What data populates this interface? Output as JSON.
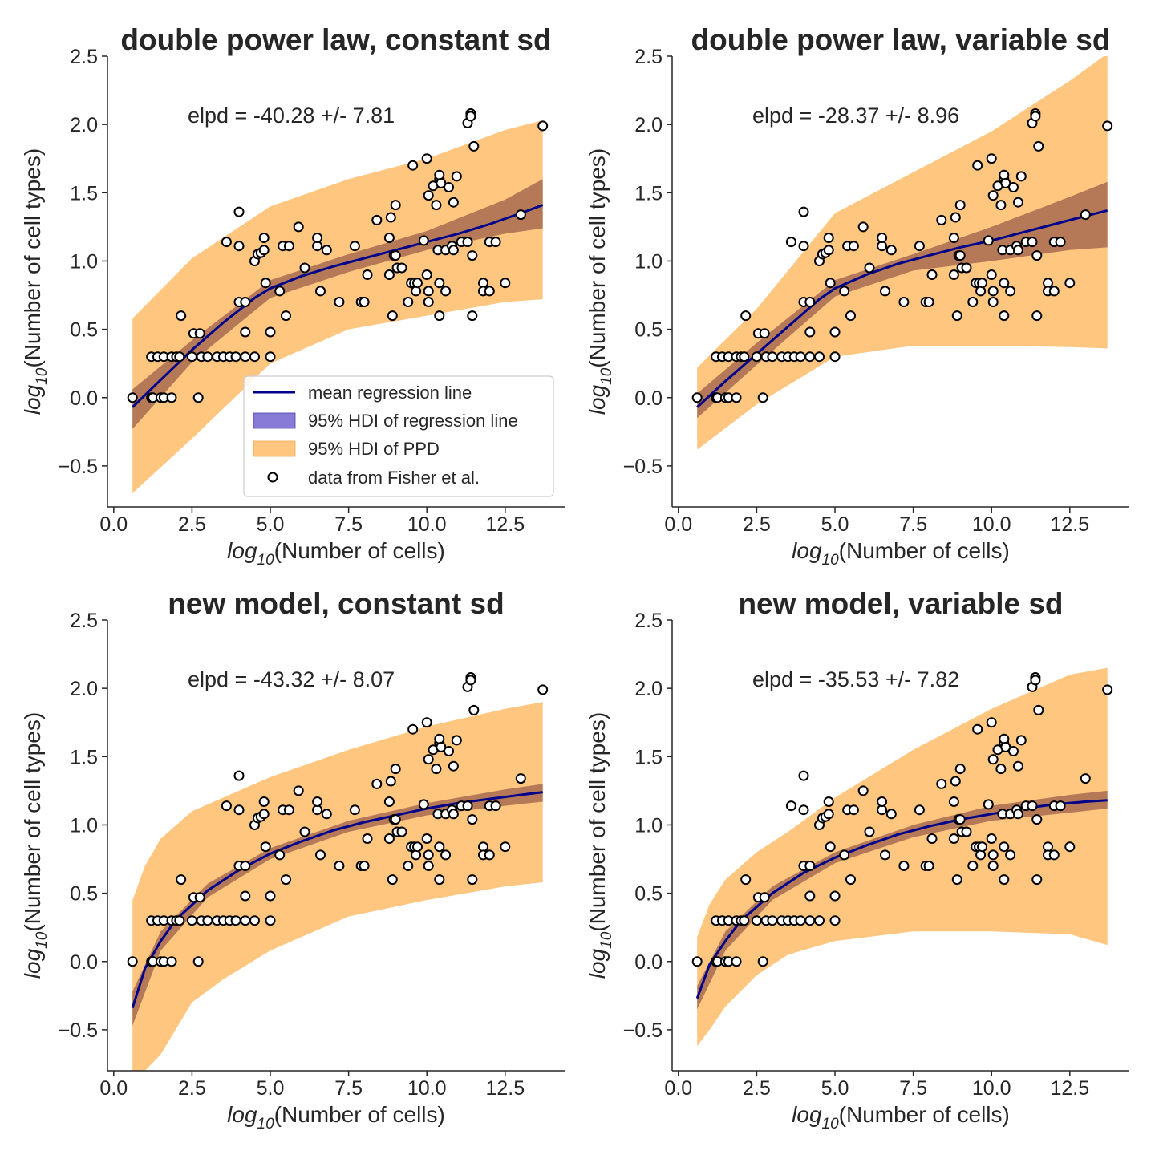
{
  "figure": {
    "x_label_base": "log",
    "x_label_sub": "10",
    "x_label_rest": "(Number of cells)",
    "y_label_base": "log",
    "y_label_sub": "10",
    "y_label_rest": "(Number of cell types)",
    "x_ticks": [
      "0.0",
      "2.5",
      "5.0",
      "7.5",
      "10.0",
      "12.5"
    ],
    "y_ticks": [
      "−0.5",
      "0.0",
      "0.5",
      "1.0",
      "1.5",
      "2.0",
      "2.5"
    ],
    "legend": {
      "mean_line": "mean regression line",
      "hdi_line": "95% HDI of regression line",
      "hdi_ppd": "95% HDI of PPD",
      "data": "data from Fisher et al."
    }
  },
  "colors": {
    "mean_line": "#00008b",
    "hdi_line_fill": "#6a5acd",
    "hdi_line_overlap": "#a86b50",
    "ppd_fill": "#ffc680",
    "points": "#ffffff",
    "point_edge": "#000000"
  },
  "chart_data": [
    {
      "type": "line",
      "title": "double power law, constant sd",
      "annotation": "elpd = -40.28 +/- 7.81",
      "xlim": [
        -0.2,
        14.4
      ],
      "ylim": [
        -0.8,
        2.5
      ],
      "has_legend": true,
      "legend_position": "lower-right",
      "grid": false,
      "mean_line": {
        "x": [
          0.6,
          1.5,
          2.5,
          3.5,
          4.5,
          5.0,
          6.0,
          7.0,
          8.0,
          9.0,
          10.0,
          11.0,
          12.0,
          13.0,
          13.7
        ],
        "y": [
          -0.07,
          0.13,
          0.35,
          0.55,
          0.73,
          0.8,
          0.89,
          0.96,
          1.02,
          1.08,
          1.14,
          1.2,
          1.27,
          1.35,
          1.41
        ]
      },
      "hdi_line": {
        "x": [
          0.6,
          2.5,
          5.0,
          7.5,
          10.0,
          12.5,
          13.7
        ],
        "lower": [
          -0.23,
          0.26,
          0.73,
          0.92,
          1.08,
          1.2,
          1.24
        ],
        "upper": [
          0.06,
          0.42,
          0.86,
          1.05,
          1.22,
          1.45,
          1.6
        ]
      },
      "ppd": {
        "x": [
          0.6,
          2.5,
          5.0,
          7.5,
          10.0,
          12.5,
          13.7
        ],
        "lower": [
          -0.7,
          -0.3,
          0.25,
          0.5,
          0.6,
          0.7,
          0.72
        ],
        "upper": [
          0.58,
          1.02,
          1.4,
          1.6,
          1.75,
          1.96,
          2.03
        ]
      }
    },
    {
      "type": "line",
      "title": "double power law, variable sd",
      "annotation": "elpd = -28.37 +/- 8.96",
      "xlim": [
        -0.2,
        14.4
      ],
      "ylim": [
        -0.8,
        2.5
      ],
      "has_legend": false,
      "grid": false,
      "mean_line": {
        "x": [
          0.6,
          1.5,
          2.5,
          3.5,
          4.5,
          5.0,
          6.0,
          7.0,
          8.0,
          9.0,
          10.0,
          11.0,
          12.0,
          13.0,
          13.7
        ],
        "y": [
          -0.07,
          0.12,
          0.32,
          0.52,
          0.72,
          0.8,
          0.9,
          0.98,
          1.04,
          1.1,
          1.15,
          1.21,
          1.27,
          1.33,
          1.37
        ]
      },
      "hdi_line": {
        "x": [
          0.6,
          2.5,
          5.0,
          7.5,
          10.0,
          12.5,
          13.7
        ],
        "lower": [
          -0.15,
          0.24,
          0.74,
          0.93,
          1.0,
          1.08,
          1.1
        ],
        "upper": [
          0.03,
          0.4,
          0.86,
          1.05,
          1.25,
          1.47,
          1.58
        ]
      },
      "ppd": {
        "x": [
          0.6,
          2.5,
          5.0,
          7.5,
          10.0,
          12.5,
          13.7
        ],
        "lower": [
          -0.38,
          -0.05,
          0.3,
          0.38,
          0.38,
          0.37,
          0.36
        ],
        "upper": [
          0.22,
          0.65,
          1.35,
          1.65,
          1.95,
          2.32,
          2.52
        ]
      }
    },
    {
      "type": "line",
      "title": "new model, constant sd",
      "annotation": "elpd = -43.32 +/- 8.07",
      "xlim": [
        -0.2,
        14.4
      ],
      "ylim": [
        -0.8,
        2.5
      ],
      "has_legend": false,
      "grid": false,
      "mean_line": {
        "x": [
          0.6,
          1.0,
          1.5,
          2.0,
          3.0,
          4.0,
          5.0,
          6.0,
          7.0,
          8.0,
          9.0,
          10.0,
          11.0,
          12.0,
          13.0,
          13.7
        ],
        "y": [
          -0.34,
          -0.05,
          0.15,
          0.31,
          0.52,
          0.67,
          0.79,
          0.88,
          0.96,
          1.02,
          1.07,
          1.12,
          1.16,
          1.19,
          1.22,
          1.24
        ]
      },
      "hdi_line": {
        "x": [
          0.6,
          1.5,
          3.0,
          5.0,
          7.5,
          10.0,
          12.5,
          13.7
        ],
        "lower": [
          -0.47,
          0.08,
          0.47,
          0.75,
          0.95,
          1.07,
          1.14,
          1.17
        ],
        "upper": [
          -0.22,
          0.22,
          0.57,
          0.83,
          1.03,
          1.16,
          1.26,
          1.3
        ]
      },
      "ppd": {
        "x": [
          0.6,
          1.0,
          1.5,
          2.5,
          3.5,
          5.0,
          7.5,
          10.0,
          12.5,
          13.7
        ],
        "lower": [
          -0.8,
          -0.8,
          -0.68,
          -0.3,
          -0.13,
          0.08,
          0.33,
          0.45,
          0.55,
          0.58
        ],
        "upper": [
          0.45,
          0.7,
          0.9,
          1.1,
          1.2,
          1.35,
          1.55,
          1.72,
          1.85,
          1.9
        ]
      }
    },
    {
      "type": "line",
      "title": "new model, variable sd",
      "annotation": "elpd = -35.53 +/- 7.82",
      "xlim": [
        -0.2,
        14.4
      ],
      "ylim": [
        -0.8,
        2.5
      ],
      "has_legend": false,
      "grid": false,
      "mean_line": {
        "x": [
          0.6,
          1.0,
          1.5,
          2.0,
          3.0,
          4.0,
          5.0,
          6.0,
          7.0,
          8.0,
          9.0,
          10.0,
          11.0,
          12.0,
          13.0,
          13.7
        ],
        "y": [
          -0.27,
          -0.02,
          0.15,
          0.3,
          0.5,
          0.65,
          0.76,
          0.85,
          0.93,
          0.99,
          1.04,
          1.08,
          1.12,
          1.15,
          1.17,
          1.18
        ]
      },
      "hdi_line": {
        "x": [
          0.6,
          1.5,
          3.0,
          5.0,
          7.5,
          10.0,
          12.5,
          13.7
        ],
        "lower": [
          -0.35,
          0.08,
          0.45,
          0.72,
          0.91,
          1.03,
          1.09,
          1.12
        ],
        "upper": [
          -0.18,
          0.22,
          0.55,
          0.8,
          1.0,
          1.14,
          1.22,
          1.25
        ]
      },
      "ppd": {
        "x": [
          0.6,
          1.0,
          1.5,
          2.5,
          3.5,
          5.0,
          7.5,
          10.0,
          12.5,
          13.7
        ],
        "lower": [
          -0.62,
          -0.5,
          -0.33,
          -0.1,
          0.05,
          0.15,
          0.22,
          0.22,
          0.2,
          0.12
        ],
        "upper": [
          0.18,
          0.42,
          0.6,
          0.8,
          0.95,
          1.2,
          1.55,
          1.85,
          2.1,
          2.15
        ]
      }
    }
  ],
  "scatter": {
    "name": "data from Fisher et al.",
    "points": [
      [
        0.6,
        0.0
      ],
      [
        1.2,
        0.0
      ],
      [
        1.25,
        0.0
      ],
      [
        1.5,
        0.0
      ],
      [
        1.6,
        0.0
      ],
      [
        1.85,
        0.0
      ],
      [
        2.7,
        0.0
      ],
      [
        1.2,
        0.3
      ],
      [
        1.4,
        0.3
      ],
      [
        1.6,
        0.3
      ],
      [
        1.85,
        0.3
      ],
      [
        2.0,
        0.3
      ],
      [
        2.1,
        0.3
      ],
      [
        2.5,
        0.3
      ],
      [
        2.8,
        0.3
      ],
      [
        3.0,
        0.3
      ],
      [
        3.3,
        0.3
      ],
      [
        3.5,
        0.3
      ],
      [
        3.7,
        0.3
      ],
      [
        3.9,
        0.3
      ],
      [
        4.2,
        0.3
      ],
      [
        4.5,
        0.3
      ],
      [
        5.0,
        0.3
      ],
      [
        2.15,
        0.6
      ],
      [
        2.55,
        0.47
      ],
      [
        2.75,
        0.47
      ],
      [
        4.0,
        0.7
      ],
      [
        4.2,
        0.7
      ],
      [
        4.2,
        0.48
      ],
      [
        3.6,
        1.14
      ],
      [
        4.0,
        1.11
      ],
      [
        4.0,
        1.36
      ],
      [
        4.5,
        1.0
      ],
      [
        4.6,
        1.05
      ],
      [
        4.7,
        1.06
      ],
      [
        4.8,
        1.08
      ],
      [
        4.8,
        1.17
      ],
      [
        4.85,
        0.84
      ],
      [
        5.0,
        0.48
      ],
      [
        5.3,
        0.78
      ],
      [
        5.4,
        1.11
      ],
      [
        5.6,
        1.11
      ],
      [
        5.5,
        0.6
      ],
      [
        5.9,
        1.25
      ],
      [
        6.1,
        0.95
      ],
      [
        6.5,
        1.11
      ],
      [
        6.5,
        1.17
      ],
      [
        6.6,
        0.78
      ],
      [
        6.8,
        1.08
      ],
      [
        7.2,
        0.7
      ],
      [
        7.7,
        1.11
      ],
      [
        7.9,
        0.7
      ],
      [
        8.0,
        0.7
      ],
      [
        8.1,
        0.9
      ],
      [
        8.4,
        1.3
      ],
      [
        8.8,
        0.9
      ],
      [
        8.8,
        1.17
      ],
      [
        8.85,
        1.32
      ],
      [
        8.9,
        0.6
      ],
      [
        8.95,
        1.04
      ],
      [
        9.0,
        1.04
      ],
      [
        9.0,
        1.41
      ],
      [
        9.05,
        0.95
      ],
      [
        9.2,
        0.95
      ],
      [
        9.4,
        0.7
      ],
      [
        9.5,
        0.84
      ],
      [
        9.55,
        1.7
      ],
      [
        9.6,
        0.84
      ],
      [
        9.65,
        0.78
      ],
      [
        9.7,
        0.84
      ],
      [
        9.9,
        1.15
      ],
      [
        10.0,
        0.9
      ],
      [
        10.0,
        1.75
      ],
      [
        10.05,
        0.7
      ],
      [
        10.05,
        0.78
      ],
      [
        10.05,
        1.48
      ],
      [
        10.2,
        1.55
      ],
      [
        10.3,
        1.41
      ],
      [
        10.35,
        1.08
      ],
      [
        10.4,
        0.84
      ],
      [
        10.4,
        0.6
      ],
      [
        10.4,
        1.6
      ],
      [
        10.4,
        1.63
      ],
      [
        10.45,
        1.57
      ],
      [
        10.6,
        0.78
      ],
      [
        10.6,
        1.08
      ],
      [
        10.7,
        1.54
      ],
      [
        10.8,
        1.11
      ],
      [
        10.85,
        1.08
      ],
      [
        10.85,
        1.43
      ],
      [
        10.95,
        1.62
      ],
      [
        11.1,
        1.14
      ],
      [
        11.3,
        1.14
      ],
      [
        11.3,
        2.01
      ],
      [
        11.4,
        2.08
      ],
      [
        11.4,
        2.06
      ],
      [
        11.45,
        1.04
      ],
      [
        11.45,
        0.6
      ],
      [
        11.5,
        1.84
      ],
      [
        11.8,
        0.84
      ],
      [
        11.8,
        0.78
      ],
      [
        12.0,
        1.14
      ],
      [
        12.0,
        0.78
      ],
      [
        12.2,
        1.14
      ],
      [
        12.5,
        0.84
      ],
      [
        13.0,
        1.34
      ],
      [
        13.7,
        1.99
      ]
    ]
  }
}
